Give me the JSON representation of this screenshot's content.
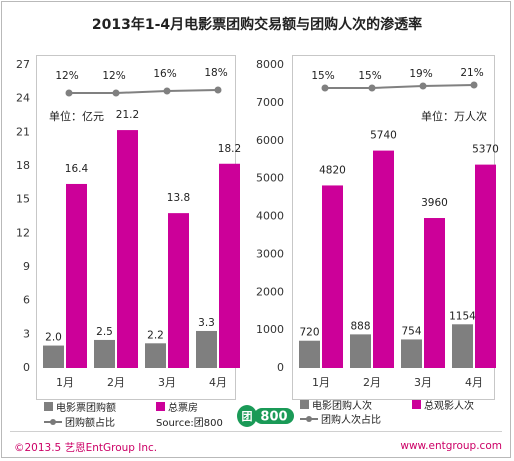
{
  "title": "2013年1-4月电影票团购交易额与团购人次的渗透率",
  "colors": {
    "gray_bar": "#7f7f7f",
    "magenta_bar": "#cc0099",
    "line": "#808080"
  },
  "chart_data": [
    {
      "type": "bar",
      "categories": [
        "1月",
        "2月",
        "3月",
        "4月"
      ],
      "unit_label": "单位：亿元",
      "ylim": [
        0,
        27
      ],
      "yticks": [
        "0",
        "3",
        "6",
        "9",
        "12",
        "15",
        "18",
        "21",
        "24",
        "27"
      ],
      "series": [
        {
          "name": "电影票团购额",
          "values": [
            2.0,
            2.5,
            2.2,
            3.3
          ],
          "labels": [
            "2.0",
            "2.5",
            "2.2",
            "3.3"
          ]
        },
        {
          "name": "总票房",
          "values": [
            16.4,
            21.2,
            13.8,
            18.2
          ],
          "labels": [
            "16.4",
            "21.2",
            "13.8",
            "18.2"
          ]
        }
      ],
      "line_series": {
        "name": "团购额占比",
        "values": [
          12,
          12,
          16,
          18
        ],
        "labels": [
          "12%",
          "12%",
          "16%",
          "18%"
        ]
      }
    },
    {
      "type": "bar",
      "categories": [
        "1月",
        "2月",
        "3月",
        "4月"
      ],
      "unit_label": "单位：万人次",
      "ylim": [
        0,
        8000
      ],
      "yticks": [
        "0",
        "1000",
        "2000",
        "3000",
        "4000",
        "5000",
        "6000",
        "7000",
        "8000"
      ],
      "series": [
        {
          "name": "电影团购人次",
          "values": [
            720,
            888,
            754,
            1154
          ],
          "labels": [
            "720",
            "888",
            "754",
            "1154"
          ]
        },
        {
          "name": "总观影人次",
          "values": [
            4820,
            5740,
            3960,
            5370
          ],
          "labels": [
            "4820",
            "5740",
            "3960",
            "5370"
          ]
        }
      ],
      "line_series": {
        "name": "团购人次占比",
        "values": [
          15,
          15,
          19,
          21
        ],
        "labels": [
          "15%",
          "15%",
          "19%",
          "21%"
        ]
      }
    }
  ],
  "legend_left": {
    "item1": "电影票团购额",
    "item2": "总票房",
    "item3": "团购额占比",
    "source": "Source:团800"
  },
  "legend_right": {
    "item1": "电影团购人次",
    "item2": "总观影人次",
    "item3": "团购人次占比"
  },
  "logo_text": "800",
  "footer": {
    "copyright": "©2013.5 艺恩EntGroup Inc.",
    "website": "www.entgroup.com"
  }
}
